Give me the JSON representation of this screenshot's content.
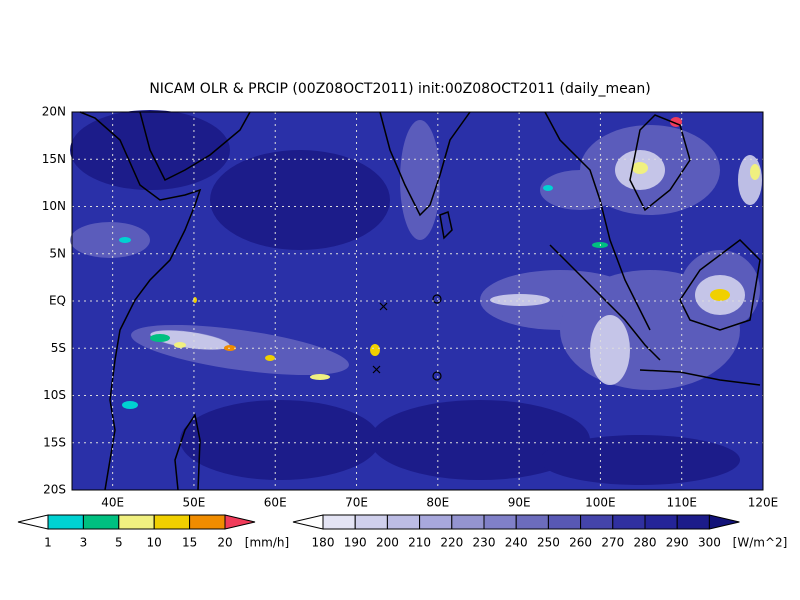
{
  "title": "NICAM OLR & PRCIP (00Z08OCT2011) init:00Z08OCT2011 (daily_mean)",
  "map": {
    "lon_labels": [
      "40E",
      "50E",
      "60E",
      "70E",
      "80E",
      "90E",
      "100E",
      "110E",
      "120E"
    ],
    "lat_labels": [
      "20N",
      "15N",
      "10N",
      "5N",
      "EQ",
      "5S",
      "10S",
      "15S",
      "20S"
    ]
  },
  "precip_colorbar": {
    "labels": [
      1,
      3,
      5,
      10,
      15,
      20
    ],
    "unit": "[mm/h]",
    "colors": [
      "#ffffff",
      "#00d2d2",
      "#00c080",
      "#f0f080",
      "#f0d000",
      "#f08c00",
      "#f03c5a"
    ]
  },
  "olr_colorbar": {
    "labels": [
      180,
      190,
      200,
      210,
      220,
      230,
      240,
      250,
      260,
      270,
      280,
      290,
      300
    ],
    "unit": "[W/m^2]",
    "colors": [
      "#ffffff",
      "#e4e4f4",
      "#d0d0ec",
      "#bcbce4",
      "#a8a8dc",
      "#9494d0",
      "#8080c8",
      "#6c6cbc",
      "#5858b4",
      "#4444aa",
      "#3030a0",
      "#242498",
      "#1c1c8a",
      "#121278"
    ]
  }
}
